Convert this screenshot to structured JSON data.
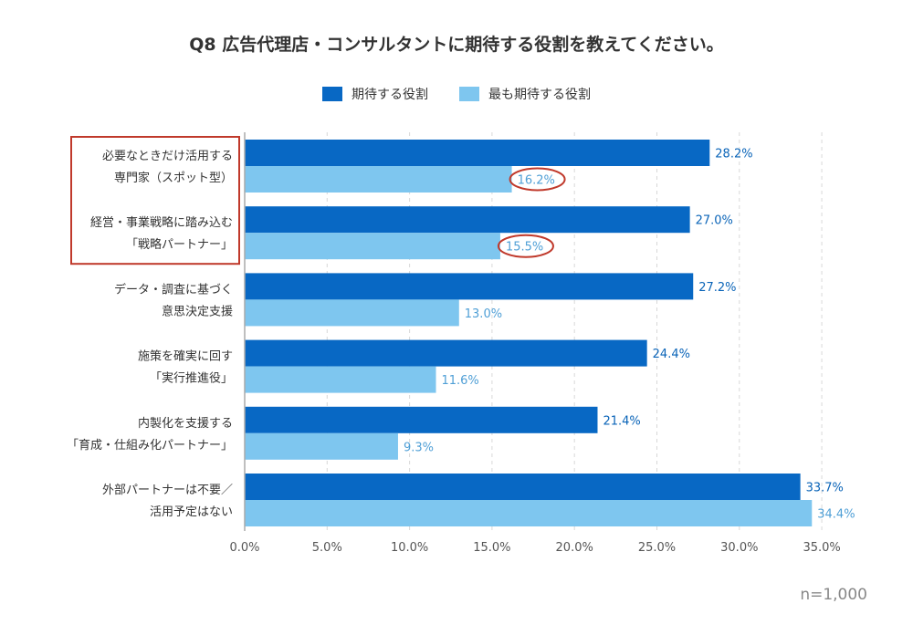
{
  "colors": {
    "expected": "#0868c4",
    "most_expected": "#7ec6ef",
    "highlight": "#c0392b",
    "expected_text": "#0a64b8",
    "most_text": "#4f9fd6"
  },
  "chart_data": {
    "type": "bar",
    "orientation": "horizontal",
    "title": "Q8 広告代理店・コンサルタントに期待する役割を教えてください。",
    "categories": [
      [
        "必要なときだけ活用する",
        "専門家（スポット型）"
      ],
      [
        "経営・事業戦略に踏み込む",
        "「戦略パートナー」"
      ],
      [
        "データ・調査に基づく",
        "意思決定支援"
      ],
      [
        "施策を確実に回す",
        "「実行推進役」"
      ],
      [
        "内製化を支援する",
        "「育成・仕組み化パートナー」"
      ],
      [
        "外部パートナーは不要／",
        "活用予定はない"
      ]
    ],
    "series": [
      {
        "name": "期待する役割",
        "values": [
          28.2,
          27.0,
          27.2,
          24.4,
          21.4,
          33.7
        ],
        "labels": [
          "28.2%",
          "27.0%",
          "27.2%",
          "24.4%",
          "21.4%",
          "33.7%"
        ]
      },
      {
        "name": "最も期待する役割",
        "values": [
          16.2,
          15.5,
          13.0,
          11.6,
          9.3,
          34.4
        ],
        "labels": [
          "16.2%",
          "15.5%",
          "13.0%",
          "11.6%",
          "9.3%",
          "34.4%"
        ]
      }
    ],
    "xlim": [
      0,
      35
    ],
    "xticks": [
      0,
      5,
      10,
      15,
      20,
      25,
      30,
      35
    ],
    "xtick_labels": [
      "0.0%",
      "5.0%",
      "10.0%",
      "15.0%",
      "20.0%",
      "25.0%",
      "30.0%",
      "35.0%"
    ],
    "grid": "vertical-dashed",
    "legend_position": "top-center",
    "highlighted_categories": [
      0,
      1
    ],
    "circled_labels": [
      [
        1,
        0
      ],
      [
        1,
        1
      ]
    ]
  },
  "sample_size": "n=1,000"
}
